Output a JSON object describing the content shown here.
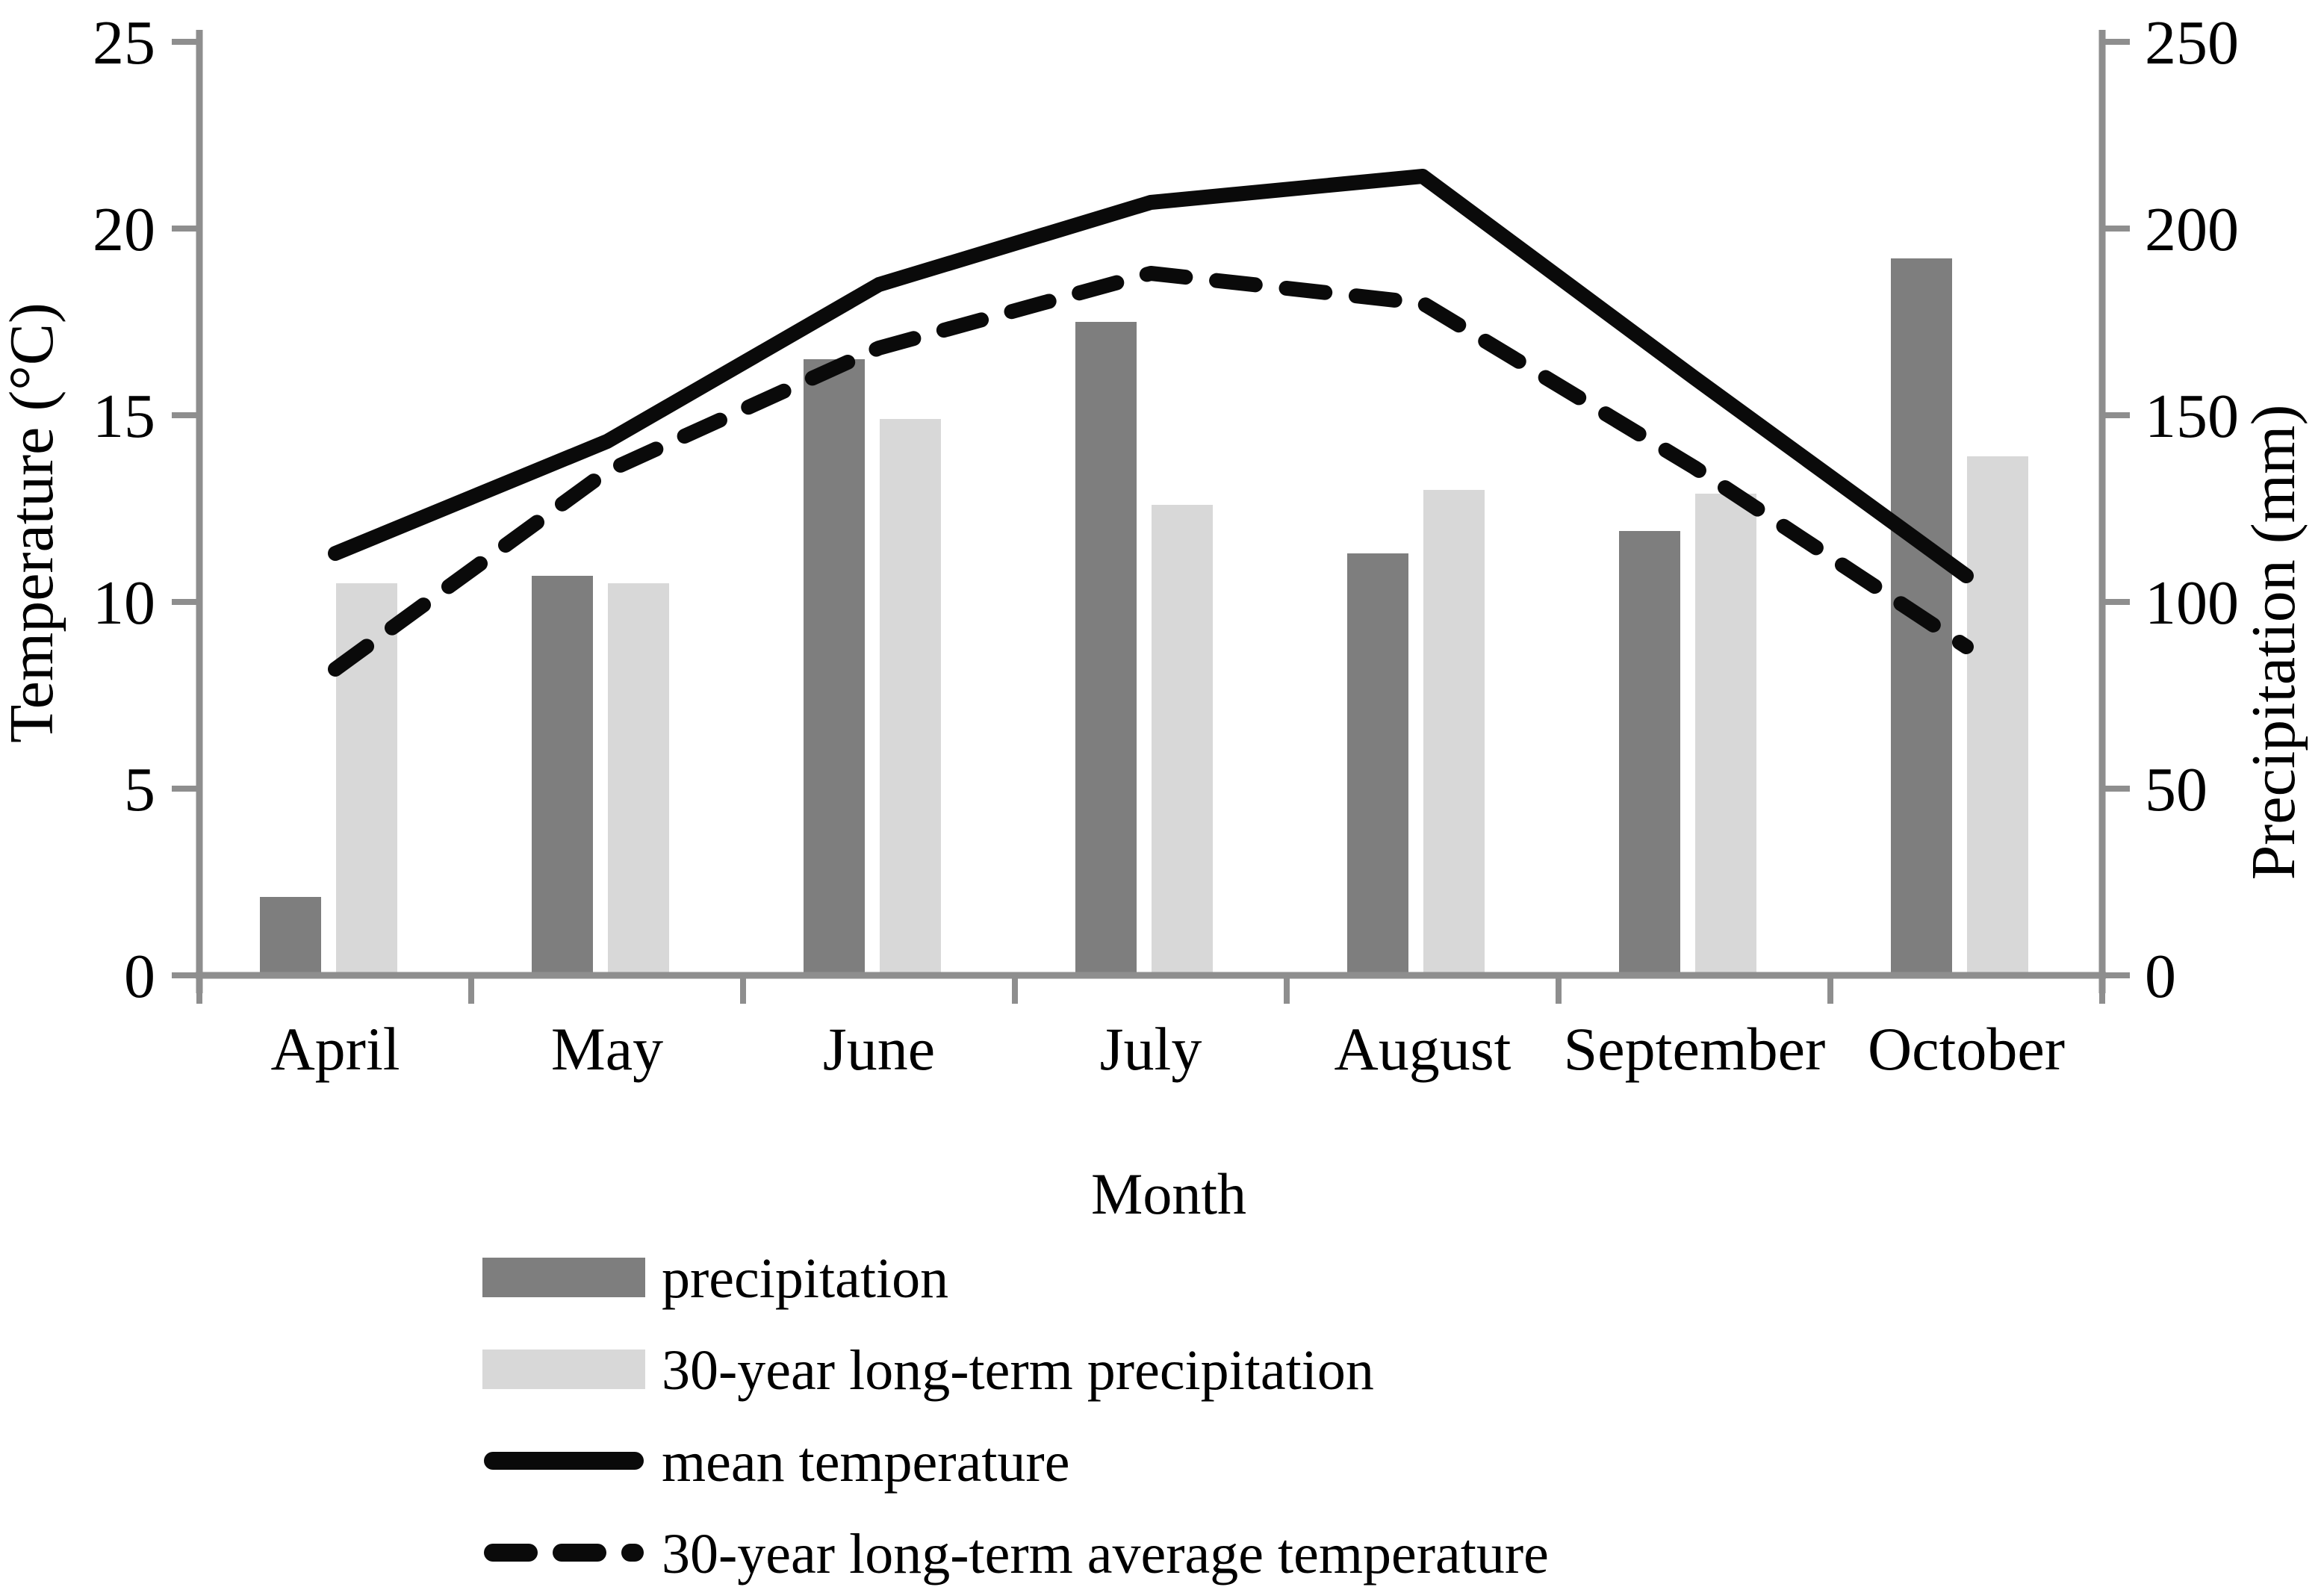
{
  "chart_data": {
    "type": "combo",
    "categories": [
      "April",
      "May",
      "June",
      "July",
      "August",
      "September",
      "October"
    ],
    "series": [
      {
        "name": "precipitation",
        "type": "bar",
        "axis": "right",
        "unit": "mm",
        "color": "#7e7e7e",
        "values": [
          21,
          107,
          165,
          175,
          113,
          119,
          192
        ]
      },
      {
        "name": "30-year long-term precipitation",
        "type": "bar",
        "axis": "right",
        "unit": "mm",
        "color": "#d8d8d8",
        "values": [
          105,
          105,
          149,
          126,
          130,
          129,
          139
        ]
      },
      {
        "name": "mean temperature",
        "type": "line",
        "line_style": "solid",
        "axis": "left",
        "unit": "°C",
        "color": "#0a0a0a",
        "values": [
          11.3,
          14.3,
          18.5,
          20.7,
          21.4,
          16.0,
          10.7
        ]
      },
      {
        "name": "30-year long-term average temperature",
        "type": "line",
        "line_style": "dashed",
        "axis": "left",
        "unit": "°C",
        "color": "#0a0a0a",
        "values": [
          8.2,
          13.5,
          16.8,
          18.8,
          18.0,
          13.6,
          8.8
        ]
      }
    ],
    "left_axis": {
      "title": "Temperature (°C)",
      "ticks": [
        0,
        5,
        10,
        15,
        20,
        25
      ],
      "range": [
        0,
        25
      ]
    },
    "right_axis": {
      "title": "Precipitation (mm)",
      "ticks": [
        0,
        50,
        100,
        150,
        200,
        250
      ],
      "range": [
        0,
        250
      ]
    },
    "x_axis": {
      "title": "Month"
    },
    "legend": {
      "position": "bottom-left",
      "entries": [
        "precipitation",
        "30-year long-term precipitation",
        "mean temperature",
        "30-year long-term average temperature"
      ]
    },
    "grid": "off",
    "axis_color": "#8e8e8e",
    "text_color": "#000000",
    "background": "#ffffff"
  }
}
